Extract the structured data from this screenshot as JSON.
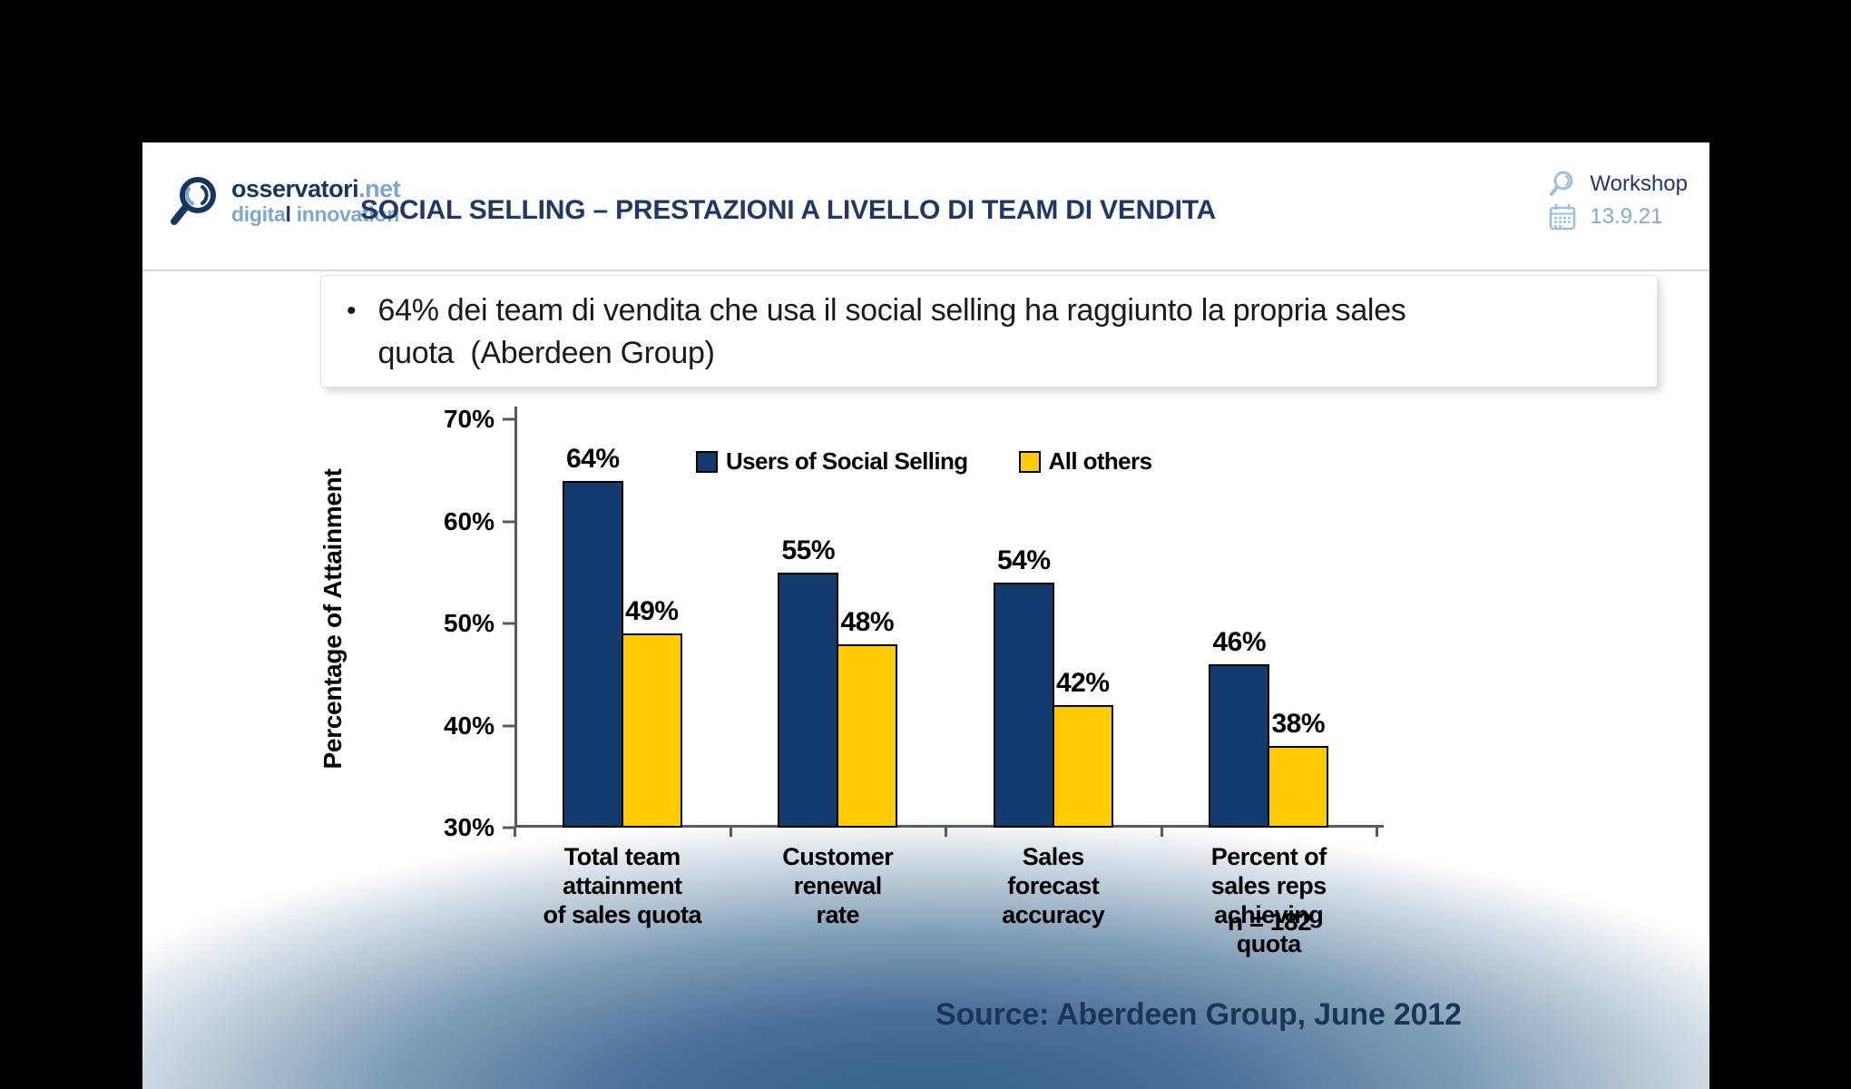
{
  "logo": {
    "brand_main": "osservatori",
    "brand_suffix": ".net",
    "sub_1": "digita",
    "sub_2": "l",
    "sub_3": " innovation"
  },
  "header": {
    "title": "SOCIAL SELLING – PRESTAZIONI A LIVELLO DI TEAM DI VENDITA",
    "workshop_label": "Workshop",
    "workshop_date": "13.9.21"
  },
  "content": {
    "bullet_marker": "•",
    "bullet_text": "64% dei team di vendita che usa il social selling ha raggiunto la propria sales quota  (Aberdeen Group)"
  },
  "chart_data": {
    "type": "bar",
    "title": "",
    "ylabel": "Percentage of Attainment",
    "xlabel": "",
    "ylim": [
      30,
      70
    ],
    "yticks": [
      "30%",
      "40%",
      "50%",
      "60%",
      "70%"
    ],
    "grid": false,
    "legend_position": "top",
    "value_suffix": "%",
    "categories": [
      "Total team\nattainment\nof sales quota",
      "Customer\nrenewal\nrate",
      "Sales\nforecast\naccuracy",
      "Percent of\nsales reps\nachieving\nquota"
    ],
    "series": [
      {
        "name": "Users of Social Selling",
        "color": "#133a6c",
        "values": [
          64,
          55,
          54,
          46
        ]
      },
      {
        "name": "All others",
        "color": "#ffcb05",
        "values": [
          49,
          48,
          42,
          38
        ]
      }
    ],
    "sample_note": "n = 182",
    "source": "Source: Aberdeen Group, June 2012"
  },
  "colors": {
    "title_navy": "#1f3864",
    "light_blue": "#7ba7cf",
    "bar_navy": "#133a6c",
    "bar_yellow": "#ffcb05",
    "axis_gray": "#595959",
    "glow_blue": "#36608a"
  }
}
